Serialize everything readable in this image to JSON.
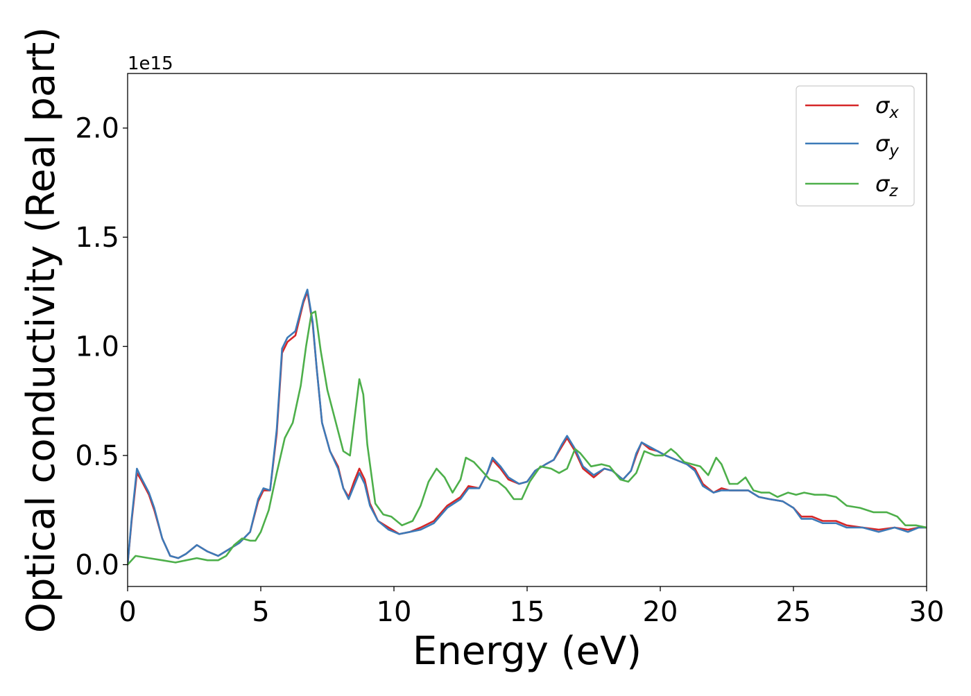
{
  "chart_data": {
    "type": "line",
    "title": "",
    "xlabel": "Energy (eV)",
    "ylabel": "Optical conductivity (Real part)",
    "y_offset_text": "1e15",
    "xlim": [
      0,
      30
    ],
    "ylim": [
      -0.1,
      2.25
    ],
    "xticks": [
      0,
      5,
      10,
      15,
      20,
      25,
      30
    ],
    "xtick_labels": [
      "0",
      "5",
      "10",
      "15",
      "20",
      "25",
      "30"
    ],
    "yticks": [
      0.0,
      0.5,
      1.0,
      1.5,
      2.0
    ],
    "ytick_labels": [
      "0.0",
      "0.5",
      "1.0",
      "1.5",
      "2.0"
    ],
    "grid": false,
    "legend_position": "top-right",
    "series": [
      {
        "name": "σx",
        "color": "#d62728",
        "points": [
          [
            0,
            0.0
          ],
          [
            0.15,
            0.2
          ],
          [
            0.35,
            0.42
          ],
          [
            0.5,
            0.39
          ],
          [
            0.8,
            0.32
          ],
          [
            1.0,
            0.25
          ],
          [
            1.3,
            0.12
          ],
          [
            1.6,
            0.04
          ],
          [
            1.9,
            0.03
          ],
          [
            2.2,
            0.05
          ],
          [
            2.6,
            0.09
          ],
          [
            3.0,
            0.06
          ],
          [
            3.4,
            0.04
          ],
          [
            3.8,
            0.07
          ],
          [
            4.2,
            0.1
          ],
          [
            4.6,
            0.15
          ],
          [
            4.9,
            0.29
          ],
          [
            5.1,
            0.34
          ],
          [
            5.35,
            0.34
          ],
          [
            5.6,
            0.6
          ],
          [
            5.8,
            0.97
          ],
          [
            6.0,
            1.02
          ],
          [
            6.3,
            1.05
          ],
          [
            6.6,
            1.2
          ],
          [
            6.75,
            1.25
          ],
          [
            6.95,
            1.1
          ],
          [
            7.1,
            0.9
          ],
          [
            7.3,
            0.65
          ],
          [
            7.6,
            0.52
          ],
          [
            7.9,
            0.45
          ],
          [
            8.1,
            0.35
          ],
          [
            8.3,
            0.31
          ],
          [
            8.5,
            0.38
          ],
          [
            8.7,
            0.44
          ],
          [
            8.9,
            0.39
          ],
          [
            9.1,
            0.28
          ],
          [
            9.4,
            0.2
          ],
          [
            9.8,
            0.17
          ],
          [
            10.2,
            0.14
          ],
          [
            10.6,
            0.15
          ],
          [
            11.0,
            0.17
          ],
          [
            11.5,
            0.2
          ],
          [
            12.0,
            0.27
          ],
          [
            12.5,
            0.31
          ],
          [
            12.8,
            0.36
          ],
          [
            13.2,
            0.35
          ],
          [
            13.5,
            0.42
          ],
          [
            13.7,
            0.48
          ],
          [
            14.0,
            0.44
          ],
          [
            14.3,
            0.39
          ],
          [
            14.7,
            0.37
          ],
          [
            15.0,
            0.38
          ],
          [
            15.3,
            0.43
          ],
          [
            15.7,
            0.46
          ],
          [
            16.0,
            0.48
          ],
          [
            16.3,
            0.54
          ],
          [
            16.5,
            0.58
          ],
          [
            16.8,
            0.52
          ],
          [
            17.1,
            0.44
          ],
          [
            17.5,
            0.4
          ],
          [
            17.9,
            0.44
          ],
          [
            18.2,
            0.43
          ],
          [
            18.6,
            0.39
          ],
          [
            18.9,
            0.43
          ],
          [
            19.1,
            0.5
          ],
          [
            19.3,
            0.56
          ],
          [
            19.6,
            0.53
          ],
          [
            19.9,
            0.52
          ],
          [
            20.2,
            0.5
          ],
          [
            20.6,
            0.48
          ],
          [
            21.0,
            0.46
          ],
          [
            21.3,
            0.44
          ],
          [
            21.6,
            0.37
          ],
          [
            22.0,
            0.33
          ],
          [
            22.3,
            0.35
          ],
          [
            22.6,
            0.34
          ],
          [
            23.0,
            0.34
          ],
          [
            23.3,
            0.34
          ],
          [
            23.7,
            0.31
          ],
          [
            24.1,
            0.3
          ],
          [
            24.6,
            0.29
          ],
          [
            25.0,
            0.26
          ],
          [
            25.3,
            0.22
          ],
          [
            25.7,
            0.22
          ],
          [
            26.1,
            0.2
          ],
          [
            26.6,
            0.2
          ],
          [
            27.0,
            0.18
          ],
          [
            27.6,
            0.17
          ],
          [
            28.2,
            0.16
          ],
          [
            28.8,
            0.17
          ],
          [
            29.3,
            0.16
          ],
          [
            29.7,
            0.17
          ],
          [
            30.0,
            0.17
          ]
        ]
      },
      {
        "name": "σy",
        "color": "#3c7ab8",
        "points": [
          [
            0,
            0.0
          ],
          [
            0.15,
            0.21
          ],
          [
            0.35,
            0.44
          ],
          [
            0.5,
            0.4
          ],
          [
            0.8,
            0.33
          ],
          [
            1.0,
            0.26
          ],
          [
            1.3,
            0.12
          ],
          [
            1.6,
            0.04
          ],
          [
            1.9,
            0.03
          ],
          [
            2.2,
            0.05
          ],
          [
            2.6,
            0.09
          ],
          [
            3.0,
            0.06
          ],
          [
            3.4,
            0.04
          ],
          [
            3.8,
            0.07
          ],
          [
            4.2,
            0.1
          ],
          [
            4.6,
            0.15
          ],
          [
            4.9,
            0.3
          ],
          [
            5.1,
            0.35
          ],
          [
            5.35,
            0.34
          ],
          [
            5.6,
            0.62
          ],
          [
            5.8,
            0.99
          ],
          [
            6.0,
            1.04
          ],
          [
            6.3,
            1.07
          ],
          [
            6.6,
            1.21
          ],
          [
            6.75,
            1.26
          ],
          [
            6.95,
            1.11
          ],
          [
            7.1,
            0.9
          ],
          [
            7.3,
            0.65
          ],
          [
            7.6,
            0.52
          ],
          [
            7.9,
            0.44
          ],
          [
            8.1,
            0.35
          ],
          [
            8.3,
            0.3
          ],
          [
            8.5,
            0.36
          ],
          [
            8.7,
            0.42
          ],
          [
            8.9,
            0.37
          ],
          [
            9.1,
            0.27
          ],
          [
            9.4,
            0.2
          ],
          [
            9.8,
            0.16
          ],
          [
            10.2,
            0.14
          ],
          [
            10.6,
            0.15
          ],
          [
            11.0,
            0.16
          ],
          [
            11.5,
            0.19
          ],
          [
            12.0,
            0.26
          ],
          [
            12.5,
            0.3
          ],
          [
            12.8,
            0.35
          ],
          [
            13.2,
            0.35
          ],
          [
            13.5,
            0.42
          ],
          [
            13.7,
            0.49
          ],
          [
            14.0,
            0.45
          ],
          [
            14.3,
            0.4
          ],
          [
            14.7,
            0.37
          ],
          [
            15.0,
            0.38
          ],
          [
            15.3,
            0.43
          ],
          [
            15.7,
            0.46
          ],
          [
            16.0,
            0.48
          ],
          [
            16.3,
            0.55
          ],
          [
            16.5,
            0.59
          ],
          [
            16.8,
            0.53
          ],
          [
            17.1,
            0.45
          ],
          [
            17.5,
            0.41
          ],
          [
            17.9,
            0.44
          ],
          [
            18.2,
            0.43
          ],
          [
            18.6,
            0.39
          ],
          [
            18.9,
            0.43
          ],
          [
            19.1,
            0.51
          ],
          [
            19.3,
            0.56
          ],
          [
            19.6,
            0.54
          ],
          [
            19.9,
            0.52
          ],
          [
            20.2,
            0.5
          ],
          [
            20.6,
            0.48
          ],
          [
            21.0,
            0.46
          ],
          [
            21.3,
            0.43
          ],
          [
            21.6,
            0.36
          ],
          [
            22.0,
            0.33
          ],
          [
            22.3,
            0.34
          ],
          [
            22.6,
            0.34
          ],
          [
            23.0,
            0.34
          ],
          [
            23.3,
            0.34
          ],
          [
            23.7,
            0.31
          ],
          [
            24.1,
            0.3
          ],
          [
            24.6,
            0.29
          ],
          [
            25.0,
            0.26
          ],
          [
            25.3,
            0.21
          ],
          [
            25.7,
            0.21
          ],
          [
            26.1,
            0.19
          ],
          [
            26.6,
            0.19
          ],
          [
            27.0,
            0.17
          ],
          [
            27.6,
            0.17
          ],
          [
            28.2,
            0.15
          ],
          [
            28.8,
            0.17
          ],
          [
            29.3,
            0.15
          ],
          [
            29.7,
            0.17
          ],
          [
            30.0,
            0.17
          ]
        ]
      },
      {
        "name": "σz",
        "color": "#4daf4a",
        "points": [
          [
            0,
            0.0
          ],
          [
            0.3,
            0.04
          ],
          [
            0.8,
            0.03
          ],
          [
            1.3,
            0.02
          ],
          [
            1.8,
            0.01
          ],
          [
            2.2,
            0.02
          ],
          [
            2.6,
            0.03
          ],
          [
            3.0,
            0.02
          ],
          [
            3.4,
            0.02
          ],
          [
            3.7,
            0.04
          ],
          [
            4.0,
            0.09
          ],
          [
            4.3,
            0.12
          ],
          [
            4.6,
            0.11
          ],
          [
            4.8,
            0.11
          ],
          [
            5.0,
            0.15
          ],
          [
            5.3,
            0.25
          ],
          [
            5.6,
            0.42
          ],
          [
            5.9,
            0.58
          ],
          [
            6.2,
            0.65
          ],
          [
            6.5,
            0.82
          ],
          [
            6.7,
            1.0
          ],
          [
            6.9,
            1.15
          ],
          [
            7.05,
            1.16
          ],
          [
            7.25,
            0.98
          ],
          [
            7.5,
            0.8
          ],
          [
            7.8,
            0.66
          ],
          [
            8.1,
            0.52
          ],
          [
            8.35,
            0.5
          ],
          [
            8.55,
            0.7
          ],
          [
            8.7,
            0.85
          ],
          [
            8.85,
            0.78
          ],
          [
            9.0,
            0.55
          ],
          [
            9.3,
            0.28
          ],
          [
            9.6,
            0.23
          ],
          [
            9.9,
            0.22
          ],
          [
            10.3,
            0.18
          ],
          [
            10.7,
            0.2
          ],
          [
            11.0,
            0.27
          ],
          [
            11.3,
            0.38
          ],
          [
            11.6,
            0.44
          ],
          [
            11.9,
            0.4
          ],
          [
            12.2,
            0.33
          ],
          [
            12.5,
            0.39
          ],
          [
            12.7,
            0.49
          ],
          [
            13.0,
            0.47
          ],
          [
            13.3,
            0.43
          ],
          [
            13.6,
            0.39
          ],
          [
            13.9,
            0.38
          ],
          [
            14.2,
            0.35
          ],
          [
            14.5,
            0.3
          ],
          [
            14.8,
            0.3
          ],
          [
            15.1,
            0.38
          ],
          [
            15.5,
            0.45
          ],
          [
            15.9,
            0.44
          ],
          [
            16.2,
            0.42
          ],
          [
            16.5,
            0.44
          ],
          [
            16.8,
            0.53
          ],
          [
            17.0,
            0.51
          ],
          [
            17.4,
            0.45
          ],
          [
            17.8,
            0.46
          ],
          [
            18.1,
            0.45
          ],
          [
            18.5,
            0.39
          ],
          [
            18.8,
            0.38
          ],
          [
            19.1,
            0.42
          ],
          [
            19.4,
            0.52
          ],
          [
            19.8,
            0.5
          ],
          [
            20.1,
            0.5
          ],
          [
            20.4,
            0.53
          ],
          [
            20.6,
            0.51
          ],
          [
            20.9,
            0.47
          ],
          [
            21.2,
            0.46
          ],
          [
            21.5,
            0.45
          ],
          [
            21.8,
            0.41
          ],
          [
            22.1,
            0.49
          ],
          [
            22.3,
            0.46
          ],
          [
            22.6,
            0.37
          ],
          [
            22.9,
            0.37
          ],
          [
            23.2,
            0.4
          ],
          [
            23.5,
            0.34
          ],
          [
            23.8,
            0.33
          ],
          [
            24.1,
            0.33
          ],
          [
            24.4,
            0.31
          ],
          [
            24.8,
            0.33
          ],
          [
            25.1,
            0.32
          ],
          [
            25.4,
            0.33
          ],
          [
            25.8,
            0.32
          ],
          [
            26.2,
            0.32
          ],
          [
            26.6,
            0.31
          ],
          [
            27.0,
            0.27
          ],
          [
            27.5,
            0.26
          ],
          [
            28.0,
            0.24
          ],
          [
            28.5,
            0.24
          ],
          [
            28.9,
            0.22
          ],
          [
            29.2,
            0.18
          ],
          [
            29.6,
            0.18
          ],
          [
            30.0,
            0.17
          ]
        ]
      }
    ]
  }
}
